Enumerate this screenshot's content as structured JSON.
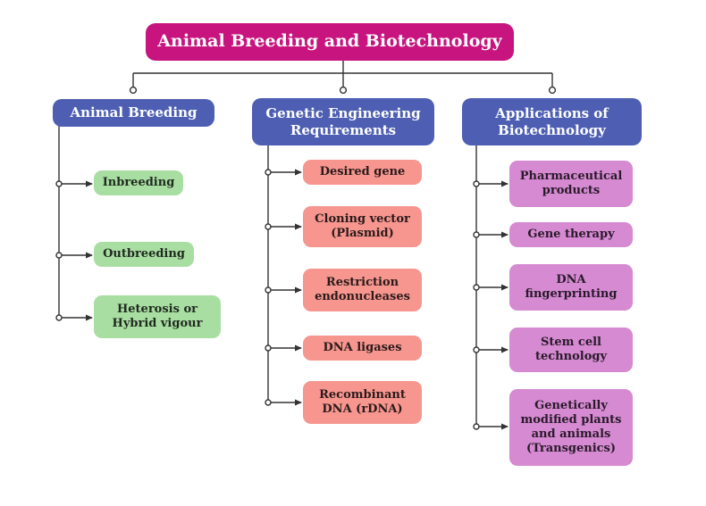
{
  "title": "Animal Breeding and Biotechnology",
  "branches": [
    {
      "label": "Animal Breeding",
      "items": [
        "Inbreeding",
        "Outbreeding",
        "Heterosis or\nHybrid vigour"
      ]
    },
    {
      "label": "Genetic Engineering\nRequirements",
      "items": [
        "Desired gene",
        "Cloning vector\n(Plasmid)",
        "Restriction\nendonucleases",
        "DNA ligases",
        "Recombinant\nDNA (rDNA)"
      ]
    },
    {
      "label": "Applications of\nBiotechnology",
      "items": [
        "Pharmaceutical\nproducts",
        "Gene therapy",
        "DNA\nfingerprinting",
        "Stem cell\ntechnology",
        "Genetically\nmodified plants\nand animals\n(Transgenics)"
      ]
    }
  ],
  "colors": {
    "title": "#c7147f",
    "category": "#4e5fb3",
    "animal_breeding_items": "#a9dea2",
    "genetic_engineering_items": "#f6968f",
    "biotechnology_items": "#d58ad2",
    "connector": "#333333"
  }
}
